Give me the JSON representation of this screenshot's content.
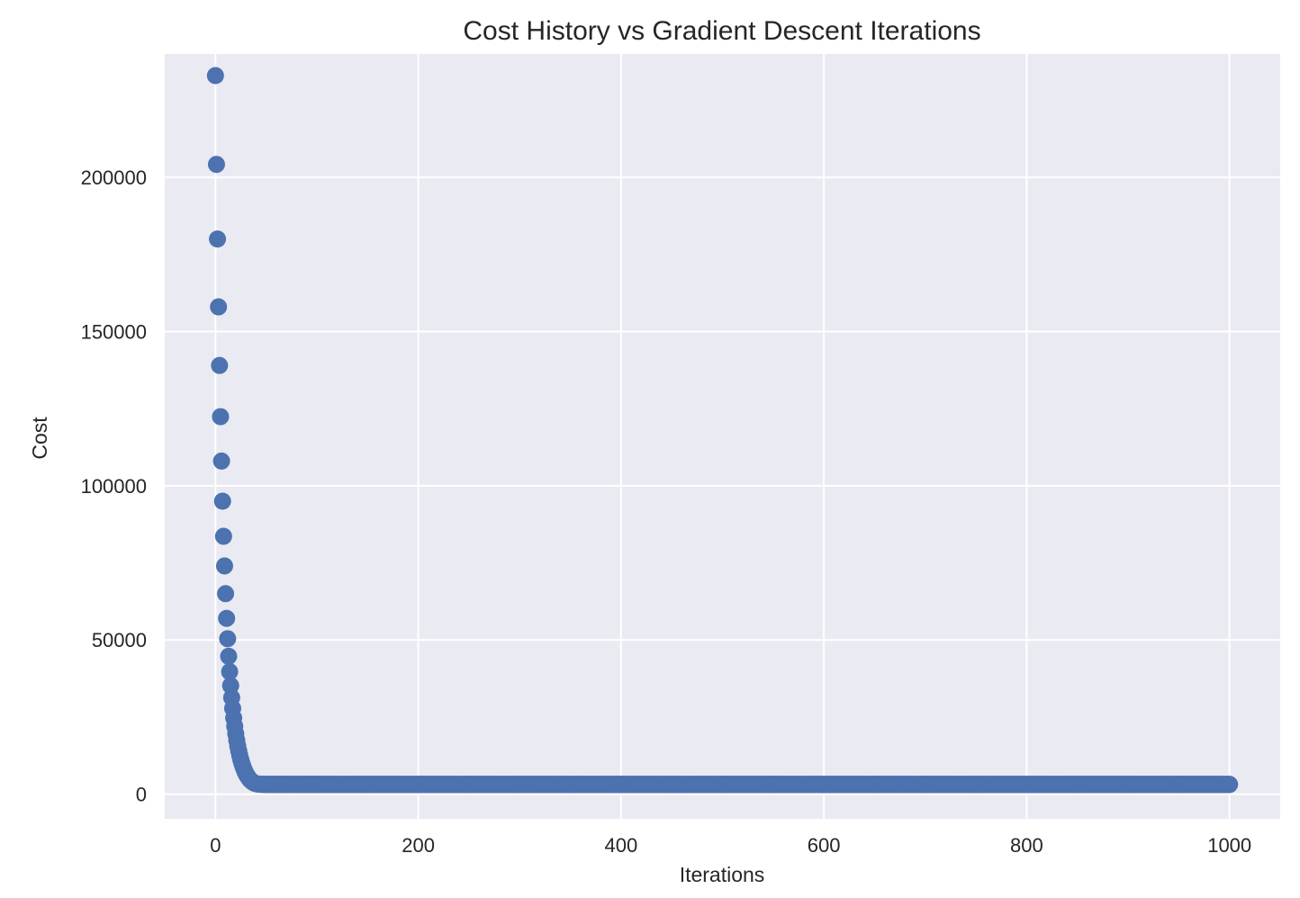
{
  "chart_data": {
    "type": "scatter",
    "title": "Cost History vs Gradient Descent Iterations",
    "xlabel": "Iterations",
    "ylabel": "Cost",
    "xlim": [
      -50,
      1050
    ],
    "ylim": [
      -8000,
      240000
    ],
    "xticks": [
      0,
      200,
      400,
      600,
      800,
      1000
    ],
    "yticks": [
      0,
      50000,
      100000,
      150000,
      200000
    ],
    "xtick_labels": [
      "0",
      "200",
      "400",
      "600",
      "800",
      "1000"
    ],
    "ytick_labels": [
      "0",
      "50000",
      "100000",
      "150000",
      "200000"
    ],
    "grid": true,
    "legend": "none",
    "colors": {
      "axes_background": "#EAEAF2",
      "grid": "#FFFFFF",
      "marker": "#4C72B0"
    },
    "series": [
      {
        "color": "#4C72B0",
        "points_x": [
          0,
          1,
          2,
          3,
          4,
          5,
          6,
          7,
          8,
          9,
          10,
          11,
          12,
          13,
          14,
          15,
          16,
          17,
          18,
          19,
          20,
          21,
          22,
          23,
          24,
          25,
          26,
          27,
          28,
          29,
          30,
          31,
          32,
          33,
          34,
          35,
          36,
          37,
          38,
          39,
          40,
          41,
          42,
          43,
          44,
          45,
          46,
          47,
          48,
          49,
          50,
          60,
          70,
          80,
          90,
          100,
          150,
          200,
          250,
          300,
          350,
          400,
          450,
          500,
          550,
          600,
          650,
          700,
          750,
          800,
          850,
          900,
          950,
          1000
        ],
        "points_y": [
          233000,
          204200,
          180000,
          158000,
          139000,
          122400,
          108000,
          95000,
          83600,
          74000,
          65000,
          57000,
          50400,
          44700,
          39700,
          35200,
          31300,
          27800,
          24700,
          22000,
          19600,
          17500,
          15600,
          14000,
          12500,
          11200,
          10100,
          9100,
          8200,
          7400,
          6700,
          6100,
          5600,
          5100,
          4700,
          4400,
          4100,
          3850,
          3650,
          3500,
          3400,
          3330,
          3280,
          3240,
          3210,
          3190,
          3175,
          3165,
          3160,
          3155,
          3150,
          3148,
          3147,
          3146,
          3146,
          3146,
          3146,
          3146,
          3146,
          3146,
          3146,
          3146,
          3146,
          3146,
          3146,
          3146,
          3146,
          3146,
          3146,
          3146,
          3146,
          3146,
          3146,
          3146
        ],
        "dense_x_range": [
          50,
          1000
        ],
        "dense_y": 3146
      }
    ]
  }
}
